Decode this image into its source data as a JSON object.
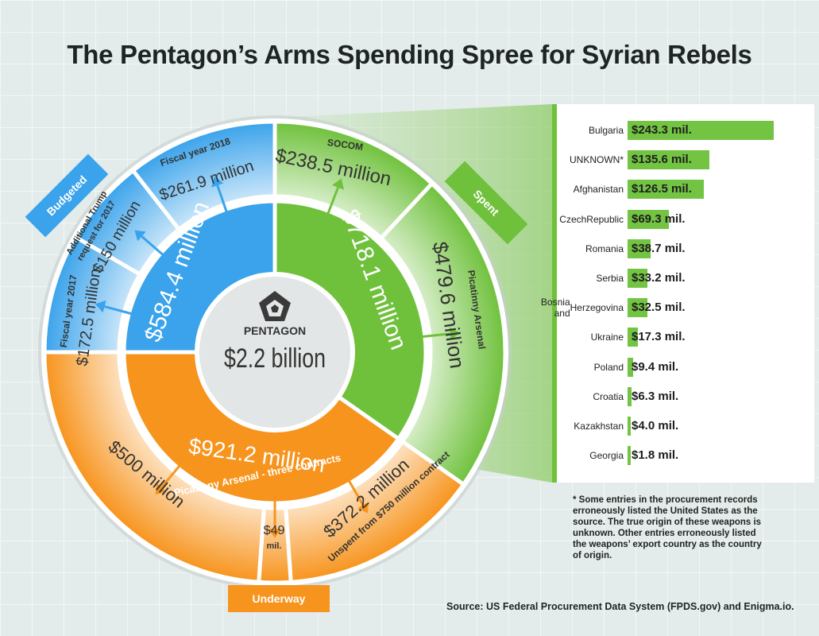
{
  "title": "The Pentagon’s Arms Spending Spree for Syrian Rebels",
  "center": {
    "label": "PENTAGON",
    "total": "$2.2 billion"
  },
  "tags": {
    "budgeted": "Budgeted",
    "spent": "Spent",
    "underway": "Underway"
  },
  "wheel": {
    "blue": {
      "inner": {
        "value": "$584.4 million",
        "amount_m": 584.4
      },
      "outer": [
        {
          "label": "Fiscal year 2017",
          "value": "$172.5 million",
          "amount_m": 172.5
        },
        {
          "label": "Additional Trump request for 2017",
          "label_lines": [
            "Additional Trump",
            "request for 2017"
          ],
          "value": "$150 million",
          "amount_m": 150
        },
        {
          "label": "Fiscal year 2018",
          "value": "$261.9 million",
          "amount_m": 261.9
        }
      ]
    },
    "green": {
      "inner": {
        "value": "$718.1 million",
        "amount_m": 718.1
      },
      "outer": [
        {
          "label": "SOCOM",
          "value": "$238.5 million",
          "amount_m": 238.5
        },
        {
          "label": "Picatinny Arsenal",
          "value": "$479.6 million",
          "amount_m": 479.6
        }
      ]
    },
    "orange": {
      "inner": {
        "value": "$921.2 million",
        "sublabel": "Picatinny Arsenal - three contracts",
        "amount_m": 921.2
      },
      "outer": [
        {
          "value": "$500 million",
          "amount_m": 500
        },
        {
          "value": "$49",
          "value_unit": "mil.",
          "amount_m": 49
        },
        {
          "value": "$372.2 million",
          "sublabel": "Unspent from $750 million contract",
          "amount_m": 372.2
        }
      ]
    }
  },
  "colors": {
    "blue": "#3aa3eb",
    "blue_light": "#bfe0f6",
    "green": "#6fc13c",
    "green_light": "#cfe9b8",
    "orange": "#f7941d",
    "orange_light": "#fbd9ae",
    "center": "#e3e6e6",
    "text_dark": "#333333",
    "bar": "#73c443"
  },
  "chart_data": {
    "type": "bar",
    "orientation": "horizontal",
    "categories": [
      "Bulgaria",
      "UNKNOWN*",
      "Afghanistan",
      "Czech Republic",
      "Romania",
      "Serbia",
      "Bosnia and Herzegovina",
      "Ukraine",
      "Poland",
      "Croatia",
      "Kazakhstan",
      "Georgia"
    ],
    "category_lines": [
      [
        "Bulgaria"
      ],
      [
        "UNKNOWN*"
      ],
      [
        "Afghanistan"
      ],
      [
        "Czech",
        "Republic"
      ],
      [
        "Romania"
      ],
      [
        "Serbia"
      ],
      [
        "Bosnia and",
        "Herzegovina"
      ],
      [
        "Ukraine"
      ],
      [
        "Poland"
      ],
      [
        "Croatia"
      ],
      [
        "Kazakhstan"
      ],
      [
        "Georgia"
      ]
    ],
    "values": [
      243.3,
      135.6,
      126.5,
      69.3,
      38.7,
      33.2,
      32.5,
      17.3,
      9.4,
      6.3,
      4.0,
      1.8
    ],
    "labels": [
      "$243.3 mil.",
      "$135.6 mil.",
      "$126.5 mil.",
      "$69.3 mil.",
      "$38.7 mil.",
      "$33.2 mil.",
      "$32.5 mil.",
      "$17.3 mil.",
      "$9.4 mil.",
      "$6.3 mil.",
      "$4.0 mil.",
      "$1.8 mil."
    ],
    "xlim": [
      0,
      243.3
    ]
  },
  "footnote": {
    "lines": [
      "* Some entries in the procurement records",
      "erroneously listed the United States as the",
      "source. The true origin of these weapons is",
      "unknown. Other entries erroneously listed",
      "the weapons’ export country as the country",
      "of origin."
    ]
  },
  "source": "Source: US Federal Procurement Data System (FPDS.gov) and Enigma.io."
}
